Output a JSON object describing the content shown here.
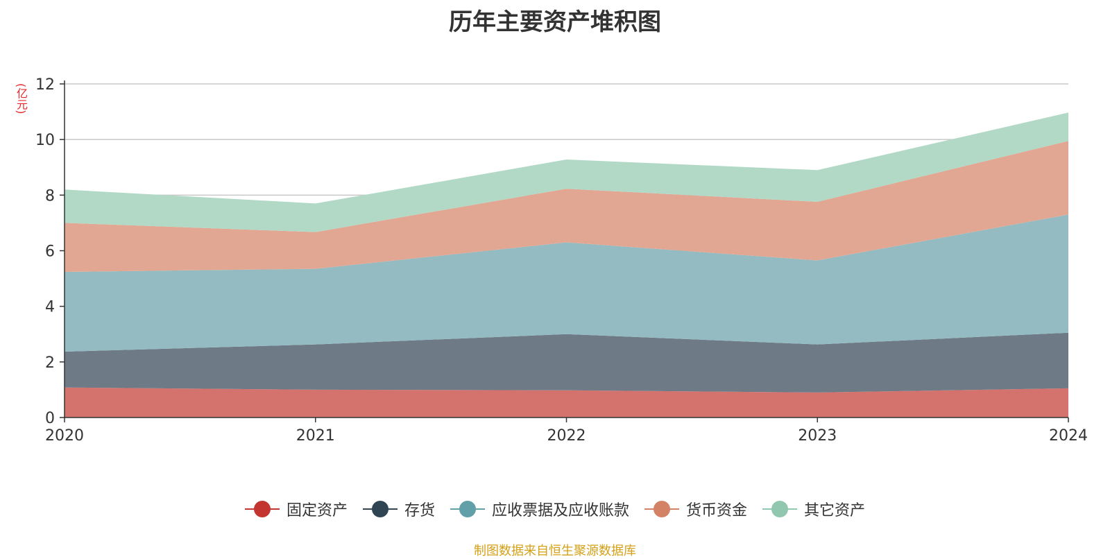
{
  "chart_data": {
    "type": "area",
    "stacked": true,
    "title": "历年主要资产堆积图",
    "ylabel": "(亿元)",
    "x": [
      "2020",
      "2021",
      "2022",
      "2023",
      "2024"
    ],
    "ylim": [
      0,
      12
    ],
    "yticks": [
      "0",
      "2",
      "4",
      "6",
      "8",
      "10",
      "12"
    ],
    "grid": true,
    "legend_position": "bottom",
    "series": [
      {
        "name": "固定资产",
        "color": "#d4726e",
        "legend_color": "#c23531",
        "values": [
          1.08,
          1.0,
          0.98,
          0.9,
          1.05
        ]
      },
      {
        "name": "存货",
        "color": "#6e7b86",
        "legend_color": "#2f4554",
        "values": [
          1.29,
          1.63,
          2.02,
          1.73,
          2.0
        ]
      },
      {
        "name": "应收票据及应收账款",
        "color": "#93bbc1",
        "legend_color": "#61a0a8",
        "values": [
          2.87,
          2.72,
          3.3,
          3.02,
          4.25
        ]
      },
      {
        "name": "货币资金",
        "color": "#e1a792",
        "legend_color": "#d48265",
        "values": [
          1.76,
          1.32,
          1.93,
          2.11,
          2.65
        ]
      },
      {
        "name": "其它资产",
        "color": "#b1d9c6",
        "legend_color": "#91c7ae",
        "values": [
          1.2,
          1.03,
          1.05,
          1.14,
          1.02
        ]
      }
    ]
  },
  "footer": {
    "source": "制图数据来自恒生聚源数据库"
  }
}
